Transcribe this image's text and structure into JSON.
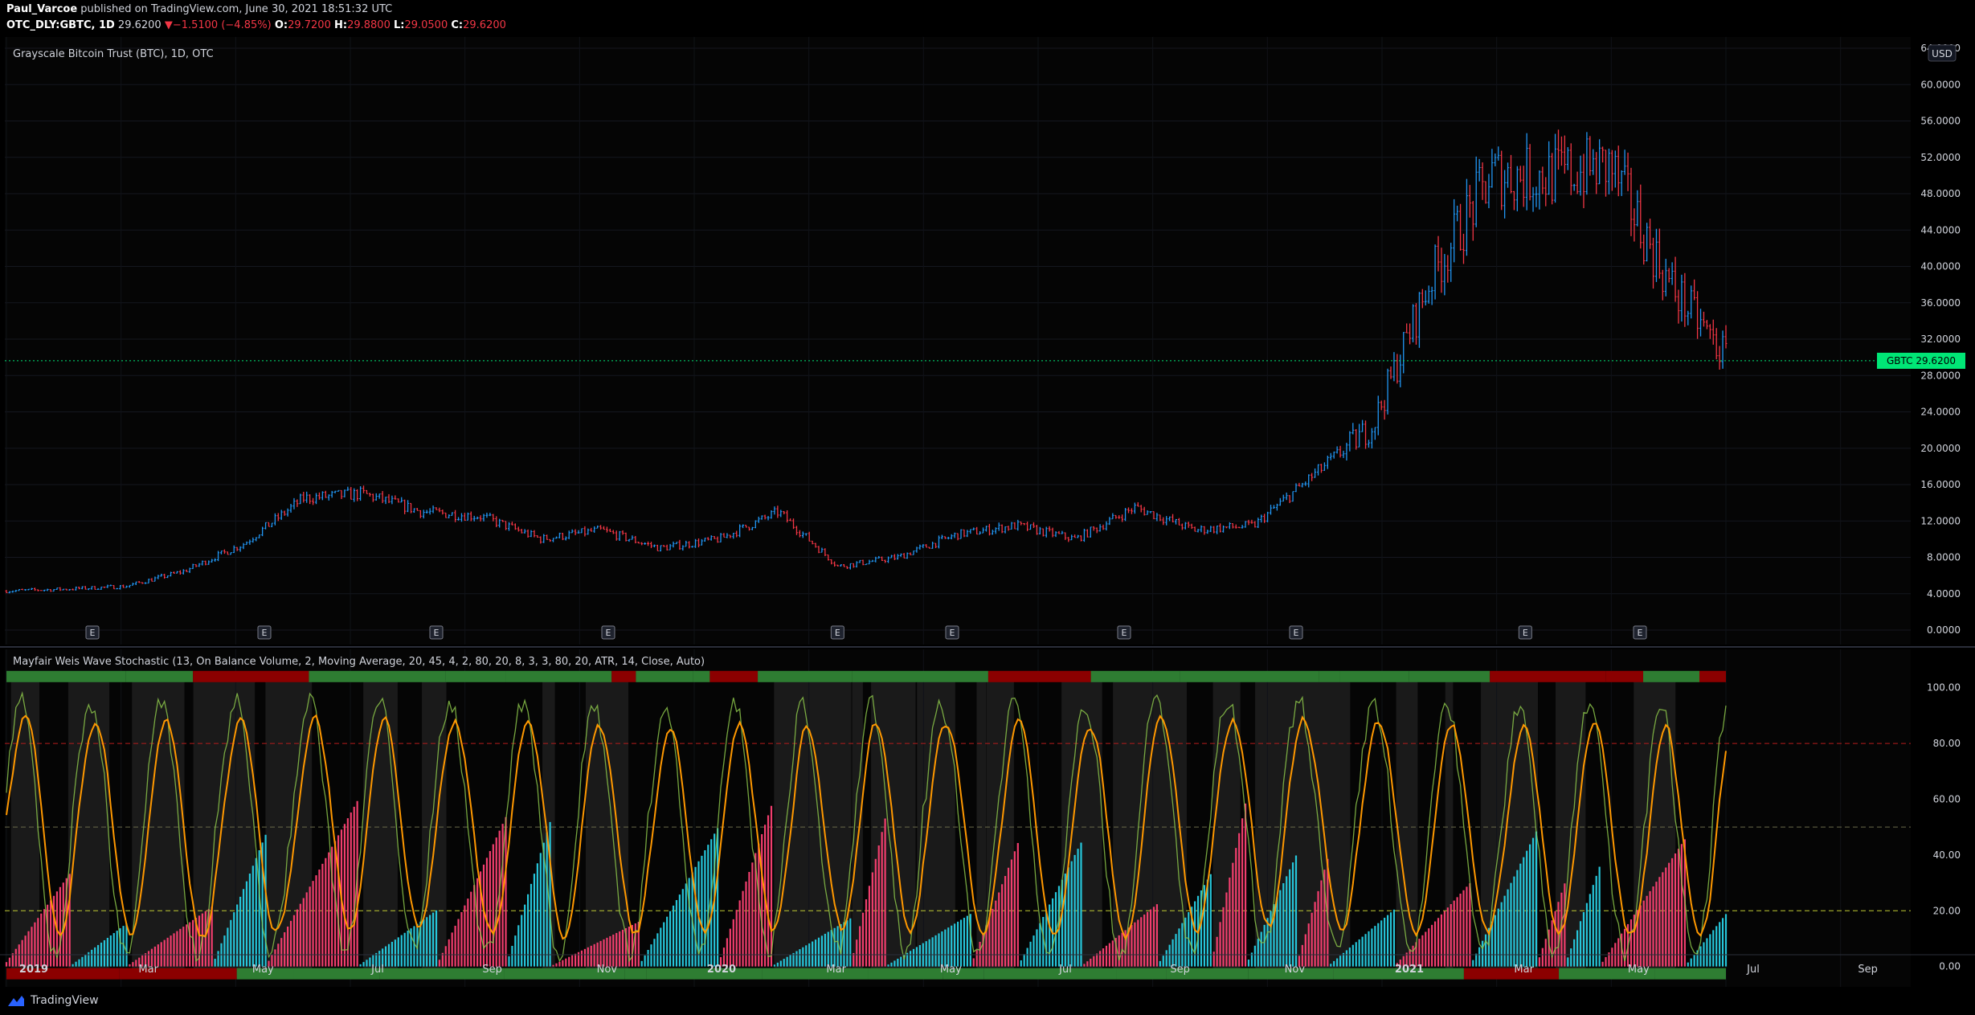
{
  "header": {
    "author": "Paul_Varcoe",
    "published": "published on TradingView.com, June 30, 2021 18:51:32 UTC",
    "symbol": "OTC_DLY:GBTC, 1D",
    "last": "29.6200",
    "change": "−1.5100 (−4.85%)",
    "open_label": "O:",
    "open": "29.7200",
    "high_label": "H:",
    "high": "29.8800",
    "low_label": "L:",
    "low": "29.0500",
    "close_label": "C:",
    "close": "29.6200"
  },
  "price_pane": {
    "title": "Grayscale Bitcoin Trust (BTC), 1D, OTC",
    "currency": "USD",
    "price_tag": "GBTC  29.6200",
    "price_tag_color": "#00e676",
    "up_color": "#2196f3",
    "down_color": "#f23645",
    "earnings_label": "E"
  },
  "indicator_pane": {
    "title": "Mayfair Weis Wave Stochastic (13, On Balance Volume, 2, Moving Average, 20, 45, 4, 2, 80, 20, 8, 3, 3, 80, 20, ATR, 14, Close, Auto)",
    "hist_up_color": "#26c6da",
    "hist_down_color": "#f23e6e",
    "k_color": "#8bc34a",
    "d_color": "#ff9800",
    "band_green": "#2e7d32",
    "band_red": "#8b0000"
  },
  "chart_data": [
    {
      "type": "line",
      "title": "Grayscale Bitcoin Trust (BTC), 1D, OTC",
      "note": "daily OHLC bars, approximated as weekly close path",
      "x": [
        "2019-01",
        "2019-02",
        "2019-03",
        "2019-04",
        "2019-05",
        "2019-06",
        "2019-07",
        "2019-08",
        "2019-09",
        "2019-10",
        "2019-11",
        "2019-12",
        "2020-01",
        "2020-02",
        "2020-03",
        "2020-04",
        "2020-05",
        "2020-06",
        "2020-07",
        "2020-08",
        "2020-09",
        "2020-10",
        "2020-11",
        "2020-12",
        "2021-01",
        "2021-02",
        "2021-03",
        "2021-04",
        "2021-05",
        "2021-06"
      ],
      "series": [
        {
          "values": [
            4.3,
            4.5,
            4.8,
            6.5,
            9.5,
            14.5,
            15.0,
            13.0,
            12.5,
            10.0,
            11.0,
            9.0,
            10.0,
            13.0,
            7.0,
            8.0,
            10.5,
            11.5,
            10.0,
            13.5,
            11.0,
            11.5,
            17.0,
            22.5,
            39.0,
            50.0,
            50.0,
            51.0,
            38.0,
            29.6
          ]
        }
      ],
      "earnings_dates": [
        "2019-02",
        "2019-05",
        "2019-08",
        "2019-11",
        "2020-03",
        "2020-05",
        "2020-08",
        "2020-11",
        "2021-03",
        "2021-05"
      ],
      "yticks": [
        "0.0000",
        "4.0000",
        "8.0000",
        "12.0000",
        "16.0000",
        "20.0000",
        "24.0000",
        "28.0000",
        "32.0000",
        "36.0000",
        "40.0000",
        "44.0000",
        "48.0000",
        "52.0000",
        "56.0000",
        "60.0000",
        "64.0000"
      ],
      "ylim": [
        0,
        64
      ],
      "last_price": 29.62
    },
    {
      "type": "line",
      "title": "Mayfair Weis Wave Stochastic",
      "yticks": [
        "0.00",
        "20.00",
        "40.00",
        "60.00",
        "80.00",
        "100.00"
      ],
      "ylim": [
        -5,
        110
      ],
      "levels": [
        20,
        50,
        80
      ]
    }
  ],
  "x_axis": {
    "labels": [
      "2019",
      "Mar",
      "May",
      "Jul",
      "Sep",
      "Nov",
      "2020",
      "Mar",
      "May",
      "Jul",
      "Sep",
      "Nov",
      "2021",
      "Mar",
      "May",
      "Jul",
      "Sep"
    ],
    "bold": [
      true,
      false,
      false,
      false,
      false,
      false,
      true,
      false,
      false,
      false,
      false,
      false,
      true,
      false,
      false,
      false,
      false
    ]
  },
  "footer": {
    "brand": "TradingView"
  }
}
